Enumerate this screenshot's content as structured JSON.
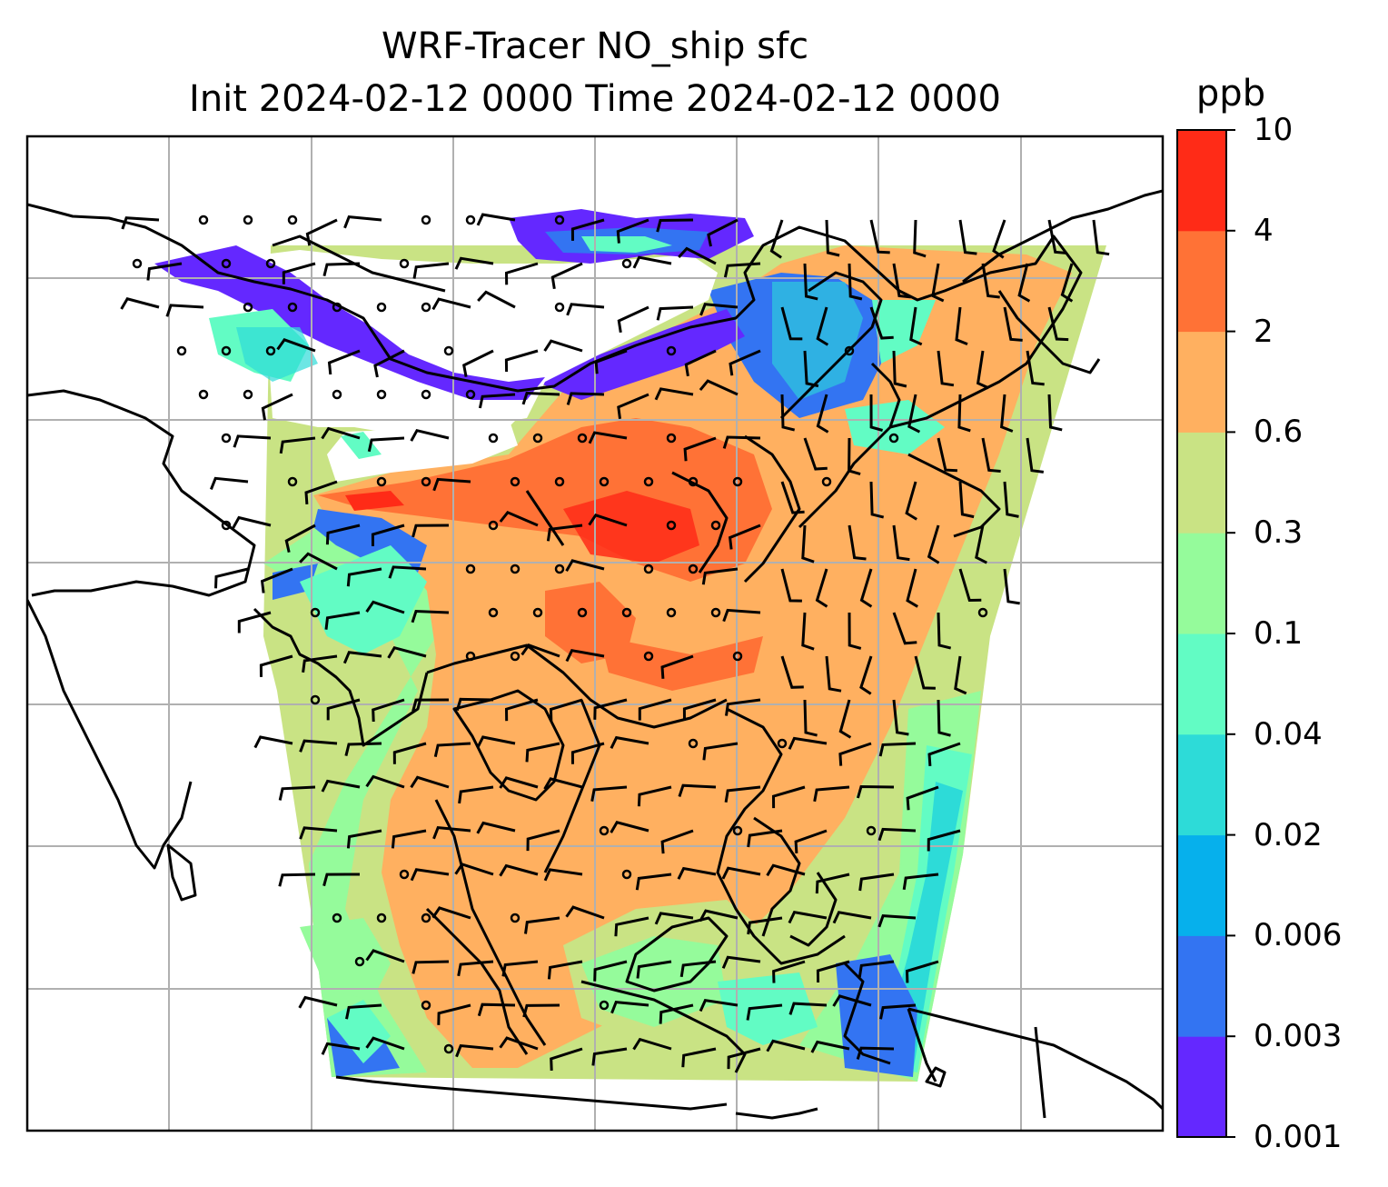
{
  "title_line1": "WRF-Tracer NO_ship sfc",
  "title_line2": "Init 2024-02-12 0000 Time 2024-02-12 0000",
  "colorbar": {
    "unit": "ppb",
    "levels": [
      "0.001",
      "0.003",
      "0.006",
      "0.02",
      "0.04",
      "0.1",
      "0.3",
      "0.6",
      "2",
      "4",
      "10"
    ],
    "colors": [
      "#6428ff",
      "#3374f2",
      "#06b0ec",
      "#2ddbd8",
      "#62fcc4",
      "#95fb9b",
      "#c9e384",
      "#ffb060",
      "#ff7236",
      "#ff2b17"
    ]
  },
  "map_colors": {
    "gridline": "#b0b0b0",
    "coastline": "#000000",
    "barb": "#000000"
  }
}
